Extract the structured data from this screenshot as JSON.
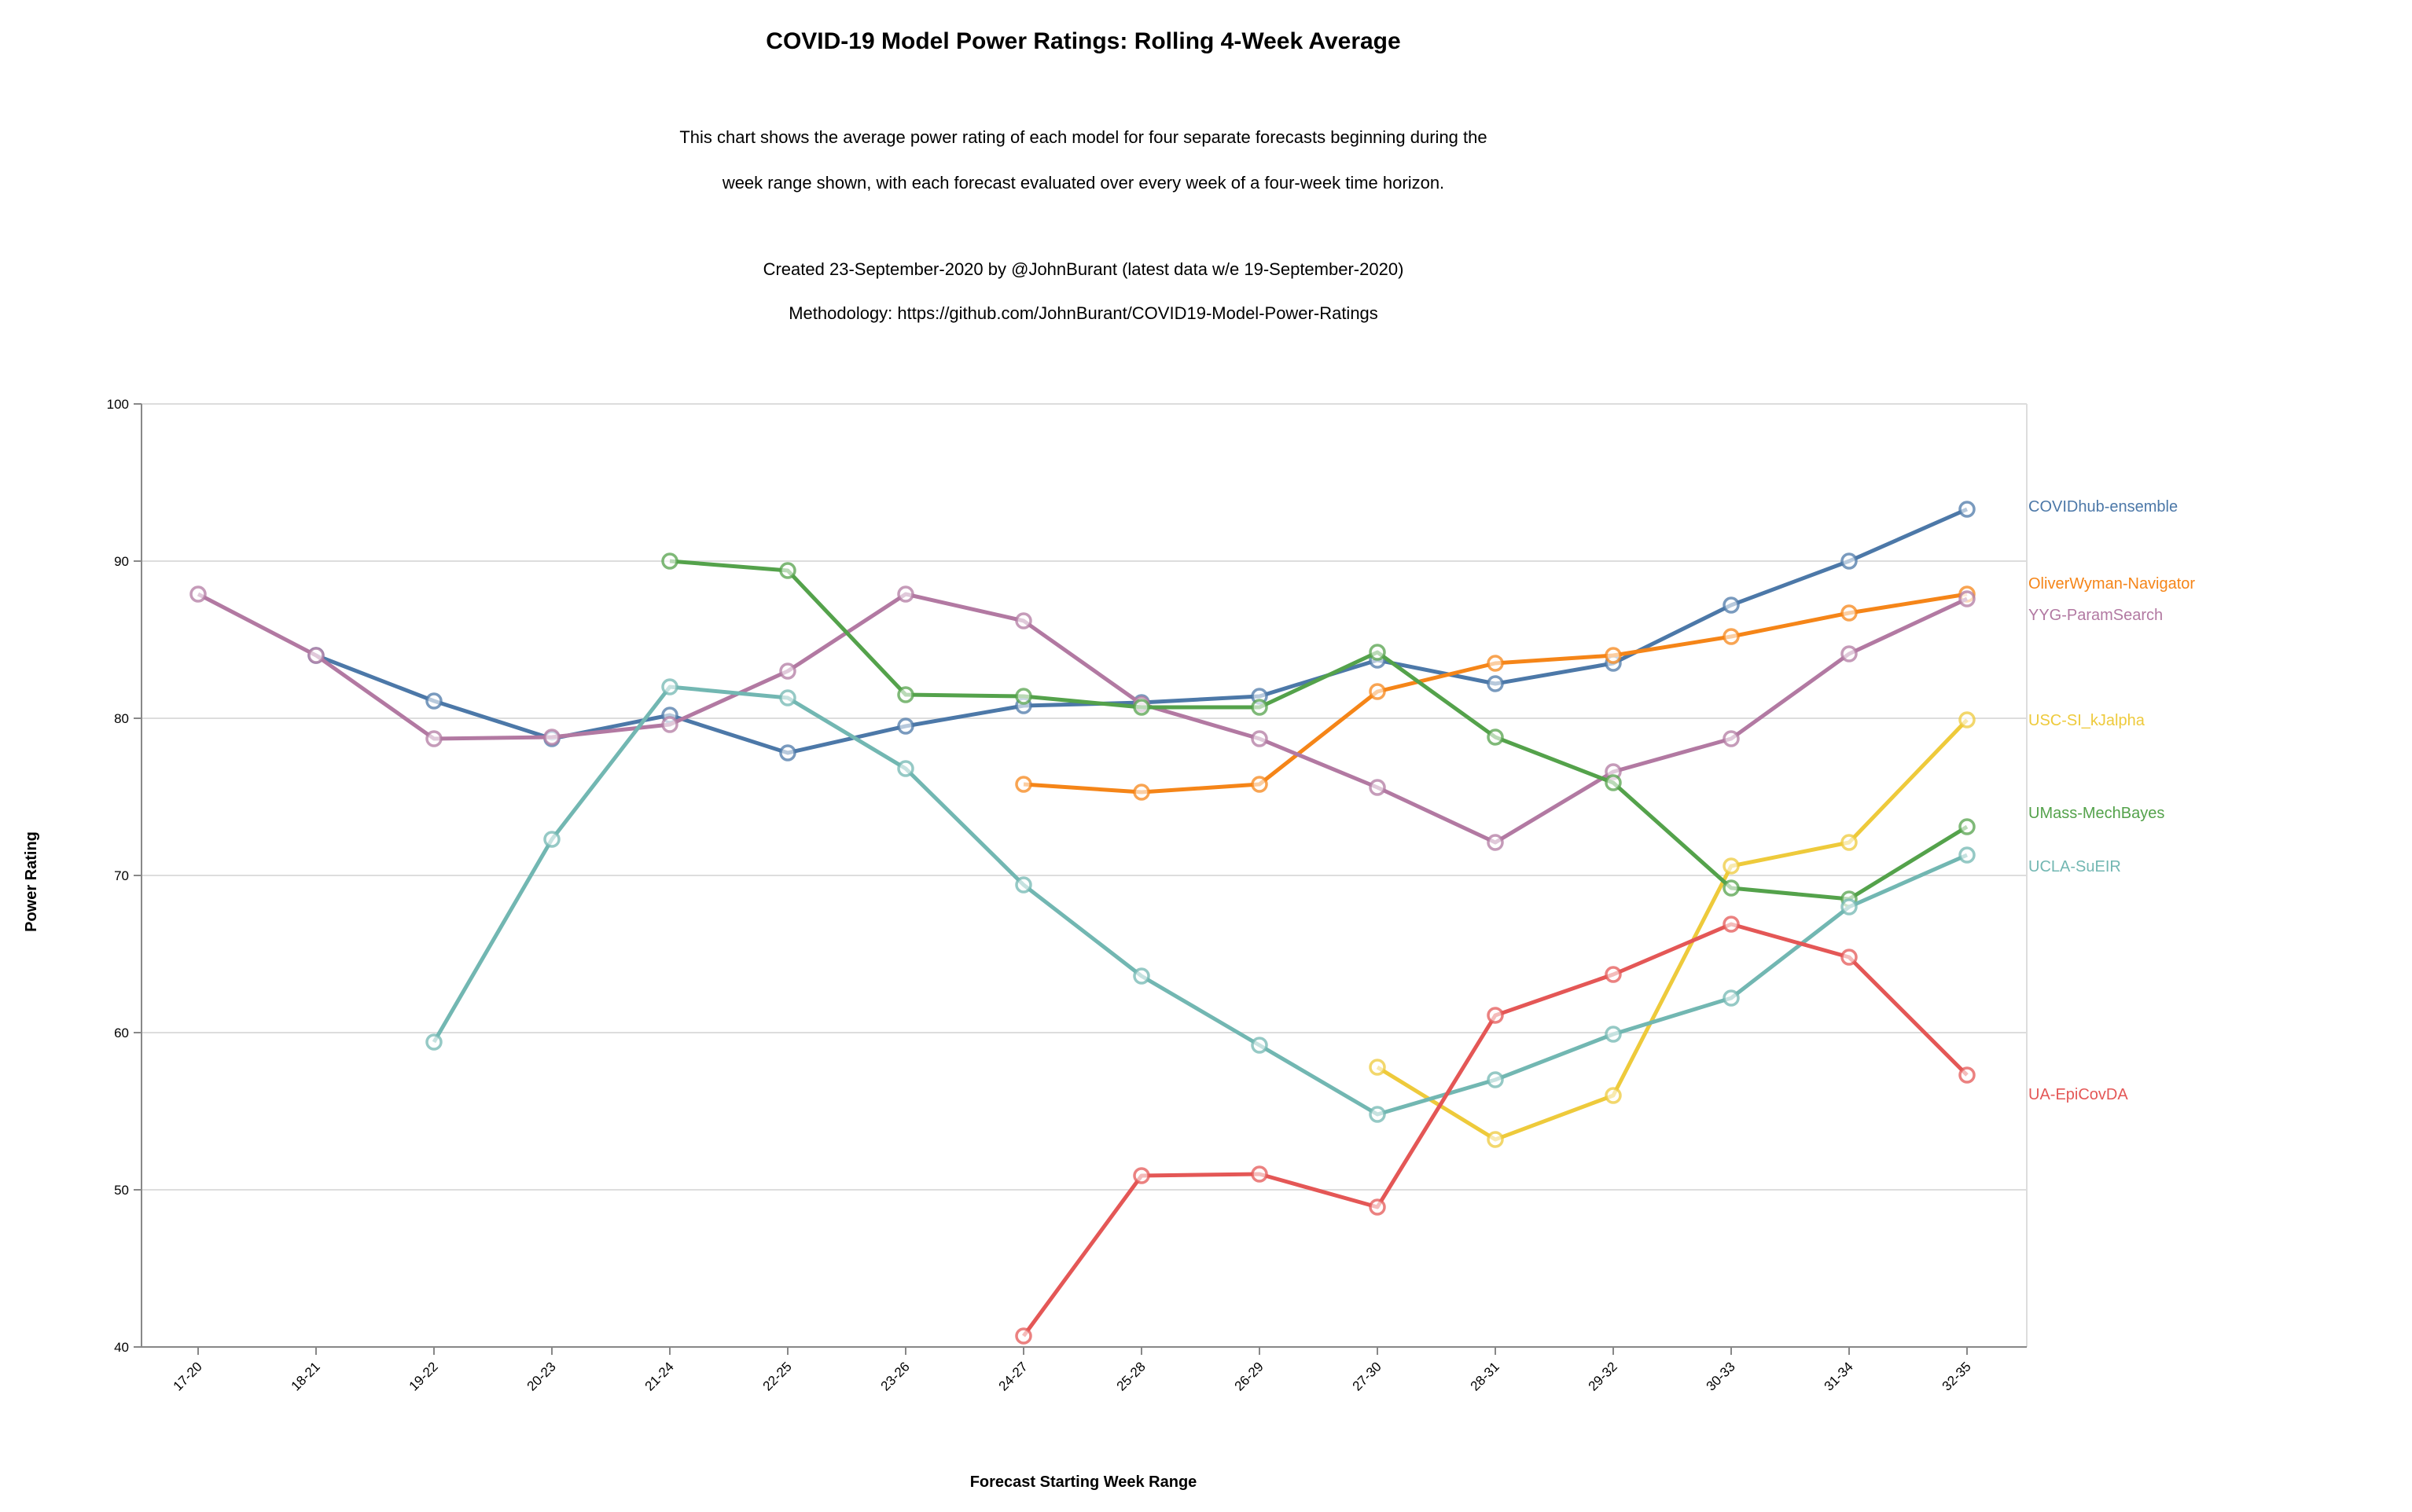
{
  "chart_data": {
    "type": "line",
    "title": "COVID-19 Model Power Ratings: Rolling 4-Week Average",
    "subtitle": [
      "This chart shows the average power rating of each model for four separate forecasts beginning during the",
      "week range shown, with each forecast evaluated over every week of a four-week time horizon.",
      "",
      "Created 23-September-2020 by @JohnBurant (latest data w/e 19-September-2020)",
      "Methodology: https://github.com/JohnBurant/COVID19-Model-Power-Ratings"
    ],
    "xlabel": "Forecast Starting Week Range",
    "ylabel": "Power Rating",
    "ylim": [
      40,
      100
    ],
    "yticks": [
      40,
      50,
      60,
      70,
      80,
      90,
      100
    ],
    "grid": true,
    "legend": "right",
    "categories": [
      "17-20",
      "18-21",
      "19-22",
      "20-23",
      "21-24",
      "22-25",
      "23-26",
      "24-27",
      "25-28",
      "26-29",
      "27-30",
      "28-31",
      "29-32",
      "30-33",
      "31-34",
      "32-35"
    ],
    "series": [
      {
        "name": "COVIDhub-ensemble",
        "color": "#4c78a8",
        "values": [
          null,
          84.0,
          81.1,
          78.7,
          80.2,
          77.8,
          79.5,
          80.8,
          81.0,
          81.4,
          83.7,
          82.2,
          83.5,
          87.2,
          90.0,
          93.3
        ]
      },
      {
        "name": "OliverWyman-Navigator",
        "color": "#f58518",
        "values": [
          null,
          null,
          null,
          null,
          null,
          null,
          null,
          75.8,
          75.3,
          75.8,
          81.7,
          83.5,
          84.0,
          85.2,
          86.7,
          87.9
        ]
      },
      {
        "name": "YYG-ParamSearch",
        "color": "#b279a2",
        "values": [
          87.9,
          84.0,
          78.7,
          78.8,
          79.6,
          83.0,
          87.9,
          86.2,
          80.9,
          78.7,
          75.6,
          72.1,
          76.6,
          78.7,
          84.1,
          87.6
        ]
      },
      {
        "name": "USC-SI_kJalpha",
        "color": "#eeca3b",
        "values": [
          null,
          null,
          null,
          null,
          null,
          null,
          null,
          null,
          null,
          null,
          57.8,
          53.2,
          56.0,
          70.6,
          72.1,
          79.9
        ]
      },
      {
        "name": "UMass-MechBayes",
        "color": "#54a24b",
        "values": [
          null,
          null,
          null,
          null,
          90.0,
          89.4,
          81.5,
          81.4,
          80.7,
          80.7,
          84.2,
          78.8,
          75.9,
          69.2,
          68.5,
          73.1
        ]
      },
      {
        "name": "UCLA-SuEIR",
        "color": "#72b7b2",
        "values": [
          null,
          null,
          59.4,
          72.3,
          82.0,
          81.3,
          76.8,
          69.4,
          63.6,
          59.2,
          54.8,
          57.0,
          59.9,
          62.2,
          68.0,
          71.3
        ]
      },
      {
        "name": "UA-EpiCovDA",
        "color": "#e45756",
        "values": [
          null,
          null,
          null,
          null,
          null,
          null,
          null,
          40.7,
          50.9,
          51.0,
          48.9,
          61.1,
          63.7,
          66.9,
          64.8,
          57.3
        ]
      }
    ]
  }
}
